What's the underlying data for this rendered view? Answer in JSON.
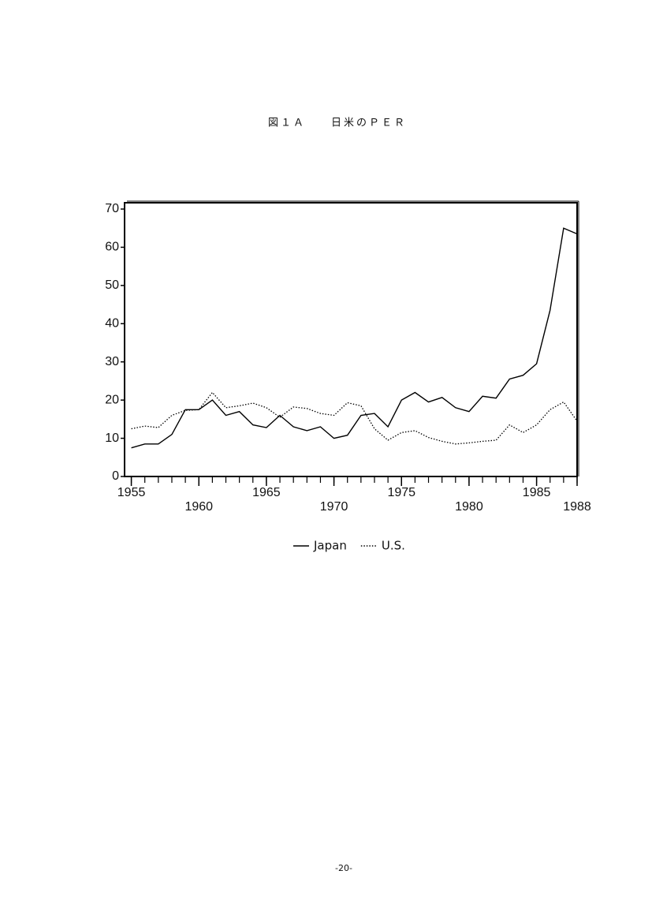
{
  "chart_data": {
    "type": "line",
    "title": "図１Ａ　　日米のＰＥＲ",
    "x": [
      1955,
      1956,
      1957,
      1958,
      1959,
      1960,
      1961,
      1962,
      1963,
      1964,
      1965,
      1966,
      1967,
      1968,
      1969,
      1970,
      1971,
      1972,
      1973,
      1974,
      1975,
      1976,
      1977,
      1978,
      1979,
      1980,
      1981,
      1982,
      1983,
      1984,
      1985,
      1986,
      1987,
      1988
    ],
    "series": [
      {
        "name": "Japan",
        "color": "#000000",
        "dash": "solid",
        "values": [
          7.5,
          8.5,
          8.5,
          11,
          17.5,
          17.5,
          20,
          16,
          17,
          13.5,
          12.8,
          16,
          13,
          12,
          13,
          10,
          10.8,
          16,
          16.5,
          13,
          20,
          22,
          19.5,
          20.7,
          18,
          17,
          21,
          20.5,
          25.5,
          26.5,
          29.5,
          43.5,
          65,
          63.5
        ]
      },
      {
        "name": "U.S.",
        "color": "#000000",
        "dash": "dotted",
        "values": [
          12.5,
          13.2,
          12.8,
          16,
          17.3,
          17.5,
          22,
          18,
          18.5,
          19.2,
          18,
          15.5,
          18.2,
          17.8,
          16.5,
          16,
          19.3,
          18.5,
          12.5,
          9.5,
          11.5,
          12,
          10.2,
          9.2,
          8.5,
          8.8,
          9.2,
          9.5,
          13.5,
          11.5,
          13.5,
          17.5,
          19.5,
          14.5
        ]
      }
    ],
    "xlim": [
      1954.5,
      1988
    ],
    "xticks": [
      1955,
      1960,
      1965,
      1970,
      1975,
      1980,
      1985,
      1988
    ],
    "ylim": [
      0,
      70
    ],
    "yticks": [
      0,
      10,
      20,
      30,
      40,
      50,
      60,
      70
    ]
  },
  "page_number": "-20-"
}
